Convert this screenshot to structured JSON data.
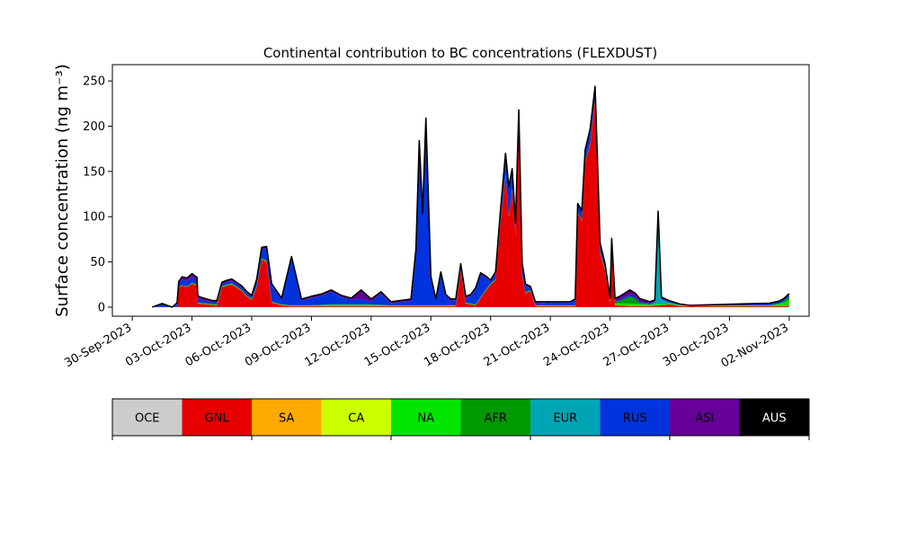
{
  "chart_data": {
    "type": "area",
    "stacked": true,
    "title": "Continental contribution to BC concentrations (FLEXDUST)",
    "ylabel": "Surface concentration (ng m⁻³)",
    "xlabel": "",
    "xlim": [
      "2023-09-29T00:00",
      "2023-11-03T00:00"
    ],
    "ylim": [
      -10,
      268
    ],
    "grid": false,
    "yticks": [
      0,
      50,
      100,
      150,
      200,
      250
    ],
    "xticks": [
      {
        "date": "2023-09-30",
        "label": "30-Sep-2023"
      },
      {
        "date": "2023-10-03",
        "label": "03-Oct-2023"
      },
      {
        "date": "2023-10-06",
        "label": "06-Oct-2023"
      },
      {
        "date": "2023-10-09",
        "label": "09-Oct-2023"
      },
      {
        "date": "2023-10-12",
        "label": "12-Oct-2023"
      },
      {
        "date": "2023-10-15",
        "label": "15-Oct-2023"
      },
      {
        "date": "2023-10-18",
        "label": "18-Oct-2023"
      },
      {
        "date": "2023-10-21",
        "label": "21-Oct-2023"
      },
      {
        "date": "2023-10-24",
        "label": "24-Oct-2023"
      },
      {
        "date": "2023-10-27",
        "label": "27-Oct-2023"
      },
      {
        "date": "2023-10-30",
        "label": "30-Oct-2023"
      },
      {
        "date": "2023-11-02",
        "label": "02-Nov-2023"
      }
    ],
    "legend": {
      "placement": "below",
      "entries": [
        {
          "name": "OCE",
          "color": "#cccccc",
          "text_color": "#000000"
        },
        {
          "name": "GNL",
          "color": "#e60000",
          "text_color": "#000000"
        },
        {
          "name": "SA",
          "color": "#ffaa00",
          "text_color": "#000000"
        },
        {
          "name": "CA",
          "color": "#ccff00",
          "text_color": "#000000"
        },
        {
          "name": "NA",
          "color": "#00e600",
          "text_color": "#000000"
        },
        {
          "name": "AFR",
          "color": "#009900",
          "text_color": "#000000"
        },
        {
          "name": "EUR",
          "color": "#00a5b5",
          "text_color": "#000000"
        },
        {
          "name": "RUS",
          "color": "#0033dd",
          "text_color": "#000000"
        },
        {
          "name": "ASI",
          "color": "#660099",
          "text_color": "#000000"
        },
        {
          "name": "AUS",
          "color": "#000000",
          "text_color": "#ffffff"
        }
      ]
    },
    "series": [
      {
        "name": "GNL",
        "points": [
          [
            "2023-10-01T00:00",
            0
          ],
          [
            "2023-10-01T12:00",
            0
          ],
          [
            "2023-10-02T06:00",
            0
          ],
          [
            "2023-10-02T08:00",
            22
          ],
          [
            "2023-10-02T12:00",
            24
          ],
          [
            "2023-10-02T18:00",
            22
          ],
          [
            "2023-10-03T00:00",
            26
          ],
          [
            "2023-10-03T06:00",
            24
          ],
          [
            "2023-10-03T07:00",
            4
          ],
          [
            "2023-10-03T18:00",
            3
          ],
          [
            "2023-10-04T06:00",
            2
          ],
          [
            "2023-10-04T12:00",
            22
          ],
          [
            "2023-10-04T18:00",
            24
          ],
          [
            "2023-10-05T00:00",
            25
          ],
          [
            "2023-10-05T12:00",
            18
          ],
          [
            "2023-10-05T18:00",
            12
          ],
          [
            "2023-10-06T00:00",
            8
          ],
          [
            "2023-10-06T06:00",
            22
          ],
          [
            "2023-10-06T12:00",
            53
          ],
          [
            "2023-10-06T18:00",
            50
          ],
          [
            "2023-10-07T00:00",
            5
          ],
          [
            "2023-10-07T12:00",
            2
          ],
          [
            "2023-10-08T00:00",
            1
          ],
          [
            "2023-10-09T00:00",
            1
          ],
          [
            "2023-10-10T00:00",
            1
          ],
          [
            "2023-10-11T00:00",
            1
          ],
          [
            "2023-10-12T00:00",
            1
          ],
          [
            "2023-10-13T00:00",
            1
          ],
          [
            "2023-10-14T00:00",
            1
          ],
          [
            "2023-10-15T00:00",
            1
          ],
          [
            "2023-10-15T12:00",
            1
          ],
          [
            "2023-10-16T06:00",
            1
          ],
          [
            "2023-10-16T12:00",
            40
          ],
          [
            "2023-10-16T18:00",
            4
          ],
          [
            "2023-10-17T06:00",
            2
          ],
          [
            "2023-10-17T12:00",
            10
          ],
          [
            "2023-10-17T18:00",
            18
          ],
          [
            "2023-10-18T00:00",
            25
          ],
          [
            "2023-10-18T06:00",
            30
          ],
          [
            "2023-10-18T12:00",
            95
          ],
          [
            "2023-10-18T18:00",
            145
          ],
          [
            "2023-10-18T22:00",
            100
          ],
          [
            "2023-10-19T02:00",
            130
          ],
          [
            "2023-10-19T06:00",
            80
          ],
          [
            "2023-10-19T10:00",
            200
          ],
          [
            "2023-10-19T14:00",
            35
          ],
          [
            "2023-10-19T18:00",
            15
          ],
          [
            "2023-10-20T00:00",
            18
          ],
          [
            "2023-10-20T06:00",
            1
          ],
          [
            "2023-10-21T00:00",
            1
          ],
          [
            "2023-10-21T12:00",
            1
          ],
          [
            "2023-10-22T00:00",
            1
          ],
          [
            "2023-10-22T06:00",
            1
          ],
          [
            "2023-10-22T09:00",
            105
          ],
          [
            "2023-10-22T14:00",
            95
          ],
          [
            "2023-10-22T18:00",
            160
          ],
          [
            "2023-10-23T00:00",
            180
          ],
          [
            "2023-10-23T06:00",
            230
          ],
          [
            "2023-10-23T12:00",
            60
          ],
          [
            "2023-10-23T18:00",
            40
          ],
          [
            "2023-10-24T00:00",
            5
          ],
          [
            "2023-10-24T02:00",
            70
          ],
          [
            "2023-10-24T06:00",
            2
          ],
          [
            "2023-10-25T00:00",
            1
          ],
          [
            "2023-10-26T00:00",
            1
          ],
          [
            "2023-10-26T12:00",
            2
          ],
          [
            "2023-10-27T00:00",
            3
          ],
          [
            "2023-10-27T12:00",
            1
          ],
          [
            "2023-10-28T00:00",
            1
          ],
          [
            "2023-10-29T00:00",
            1
          ],
          [
            "2023-10-30T00:00",
            1
          ],
          [
            "2023-10-31T00:00",
            1
          ],
          [
            "2023-11-01T00:00",
            1
          ],
          [
            "2023-11-02T00:00",
            1
          ]
        ]
      },
      {
        "name": "NA",
        "points": [
          [
            "2023-10-01T00:00",
            0
          ],
          [
            "2023-10-02T00:00",
            0
          ],
          [
            "2023-10-03T00:00",
            1
          ],
          [
            "2023-10-04T00:00",
            1
          ],
          [
            "2023-10-05T00:00",
            1
          ],
          [
            "2023-10-06T00:00",
            1
          ],
          [
            "2023-10-07T00:00",
            1
          ],
          [
            "2023-10-08T00:00",
            1
          ],
          [
            "2023-10-09T00:00",
            1
          ],
          [
            "2023-10-10T00:00",
            2
          ],
          [
            "2023-10-11T00:00",
            2
          ],
          [
            "2023-10-12T00:00",
            2
          ],
          [
            "2023-10-13T00:00",
            1
          ],
          [
            "2023-10-14T00:00",
            1
          ],
          [
            "2023-10-15T00:00",
            1
          ],
          [
            "2023-10-16T00:00",
            1
          ],
          [
            "2023-10-17T00:00",
            1
          ],
          [
            "2023-10-18T00:00",
            1
          ],
          [
            "2023-10-19T00:00",
            1
          ],
          [
            "2023-10-20T00:00",
            1
          ],
          [
            "2023-10-21T00:00",
            1
          ],
          [
            "2023-10-22T00:00",
            1
          ],
          [
            "2023-10-23T00:00",
            1
          ],
          [
            "2023-10-24T00:00",
            2
          ],
          [
            "2023-10-25T00:00",
            3
          ],
          [
            "2023-10-26T00:00",
            2
          ],
          [
            "2023-10-27T00:00",
            1
          ],
          [
            "2023-10-28T00:00",
            1
          ],
          [
            "2023-10-29T00:00",
            1
          ],
          [
            "2023-10-30T00:00",
            1
          ],
          [
            "2023-10-31T00:00",
            1
          ],
          [
            "2023-11-01T00:00",
            1
          ],
          [
            "2023-11-01T18:00",
            4
          ],
          [
            "2023-11-02T00:00",
            7
          ]
        ]
      },
      {
        "name": "AFR",
        "points": [
          [
            "2023-10-01T00:00",
            0
          ],
          [
            "2023-10-24T00:00",
            0
          ],
          [
            "2023-10-24T12:00",
            3
          ],
          [
            "2023-10-25T00:00",
            8
          ],
          [
            "2023-10-25T06:00",
            6
          ],
          [
            "2023-10-25T12:00",
            1
          ],
          [
            "2023-10-26T00:00",
            0
          ],
          [
            "2023-11-01T12:00",
            0
          ],
          [
            "2023-11-02T00:00",
            4
          ]
        ]
      },
      {
        "name": "EUR",
        "points": [
          [
            "2023-10-01T00:00",
            0
          ],
          [
            "2023-10-26T00:00",
            0
          ],
          [
            "2023-10-26T06:00",
            2
          ],
          [
            "2023-10-26T10:00",
            100
          ],
          [
            "2023-10-26T14:00",
            5
          ],
          [
            "2023-10-27T00:00",
            1
          ],
          [
            "2023-10-28T00:00",
            0
          ],
          [
            "2023-11-02T00:00",
            0
          ]
        ]
      },
      {
        "name": "RUS",
        "points": [
          [
            "2023-10-01T00:00",
            0
          ],
          [
            "2023-10-01T12:00",
            3
          ],
          [
            "2023-10-02T00:00",
            0
          ],
          [
            "2023-10-02T12:00",
            6
          ],
          [
            "2023-10-03T00:00",
            6
          ],
          [
            "2023-10-03T12:00",
            3
          ],
          [
            "2023-10-04T00:00",
            2
          ],
          [
            "2023-10-05T00:00",
            3
          ],
          [
            "2023-10-06T00:00",
            2
          ],
          [
            "2023-10-07T00:00",
            18
          ],
          [
            "2023-10-07T12:00",
            5
          ],
          [
            "2023-10-08T00:00",
            52
          ],
          [
            "2023-10-08T12:00",
            5
          ],
          [
            "2023-10-09T00:00",
            8
          ],
          [
            "2023-10-09T12:00",
            10
          ],
          [
            "2023-10-10T00:00",
            14
          ],
          [
            "2023-10-10T12:00",
            8
          ],
          [
            "2023-10-11T00:00",
            5
          ],
          [
            "2023-10-11T12:00",
            6
          ],
          [
            "2023-10-12T00:00",
            3
          ],
          [
            "2023-10-12T12:00",
            12
          ],
          [
            "2023-10-13T00:00",
            2
          ],
          [
            "2023-10-14T00:00",
            5
          ],
          [
            "2023-10-14T06:00",
            60
          ],
          [
            "2023-10-14T10:00",
            180
          ],
          [
            "2023-10-14T14:00",
            100
          ],
          [
            "2023-10-14T18:00",
            205
          ],
          [
            "2023-10-15T00:00",
            30
          ],
          [
            "2023-10-15T06:00",
            5
          ],
          [
            "2023-10-15T12:00",
            35
          ],
          [
            "2023-10-15T18:00",
            10
          ],
          [
            "2023-10-16T00:00",
            5
          ],
          [
            "2023-10-16T06:00",
            5
          ],
          [
            "2023-10-16T18:00",
            5
          ],
          [
            "2023-10-17T00:00",
            8
          ],
          [
            "2023-10-17T12:00",
            25
          ],
          [
            "2023-10-18T00:00",
            2
          ],
          [
            "2023-10-18T12:00",
            10
          ],
          [
            "2023-10-18T22:00",
            30
          ],
          [
            "2023-10-19T06:00",
            10
          ],
          [
            "2023-10-19T10:00",
            15
          ],
          [
            "2023-10-20T00:00",
            2
          ],
          [
            "2023-10-21T00:00",
            3
          ],
          [
            "2023-10-22T00:00",
            3
          ],
          [
            "2023-10-23T00:00",
            15
          ],
          [
            "2023-10-24T00:00",
            1
          ],
          [
            "2023-10-25T00:00",
            2
          ],
          [
            "2023-10-26T00:00",
            1
          ],
          [
            "2023-10-27T00:00",
            1
          ],
          [
            "2023-10-28T00:00",
            0
          ],
          [
            "2023-11-02T00:00",
            2
          ]
        ]
      },
      {
        "name": "ASI",
        "points": [
          [
            "2023-10-01T00:00",
            0
          ],
          [
            "2023-10-01T12:00",
            1
          ],
          [
            "2023-10-02T00:00",
            0
          ],
          [
            "2023-10-02T12:00",
            3
          ],
          [
            "2023-10-03T00:00",
            4
          ],
          [
            "2023-10-04T00:00",
            2
          ],
          [
            "2023-10-05T00:00",
            2
          ],
          [
            "2023-10-06T00:00",
            2
          ],
          [
            "2023-10-07T00:00",
            2
          ],
          [
            "2023-10-08T00:00",
            2
          ],
          [
            "2023-10-09T00:00",
            2
          ],
          [
            "2023-10-10T00:00",
            2
          ],
          [
            "2023-10-11T00:00",
            2
          ],
          [
            "2023-10-11T12:00",
            10
          ],
          [
            "2023-10-12T00:00",
            3
          ],
          [
            "2023-10-13T00:00",
            2
          ],
          [
            "2023-10-14T00:00",
            2
          ],
          [
            "2023-10-15T00:00",
            2
          ],
          [
            "2023-10-16T00:00",
            2
          ],
          [
            "2023-10-17T00:00",
            2
          ],
          [
            "2023-10-18T00:00",
            2
          ],
          [
            "2023-10-19T00:00",
            2
          ],
          [
            "2023-10-20T00:00",
            2
          ],
          [
            "2023-10-21T00:00",
            1
          ],
          [
            "2023-10-22T00:00",
            1
          ],
          [
            "2023-10-23T00:00",
            1
          ],
          [
            "2023-10-24T00:00",
            2
          ],
          [
            "2023-10-25T00:00",
            5
          ],
          [
            "2023-10-26T00:00",
            2
          ],
          [
            "2023-10-27T00:00",
            1
          ],
          [
            "2023-10-28T00:00",
            0
          ],
          [
            "2023-11-02T00:00",
            1
          ]
        ]
      },
      {
        "name": "AUS",
        "points": [
          [
            "2023-10-01T00:00",
            0
          ],
          [
            "2023-11-02T00:00",
            0
          ]
        ]
      }
    ]
  }
}
